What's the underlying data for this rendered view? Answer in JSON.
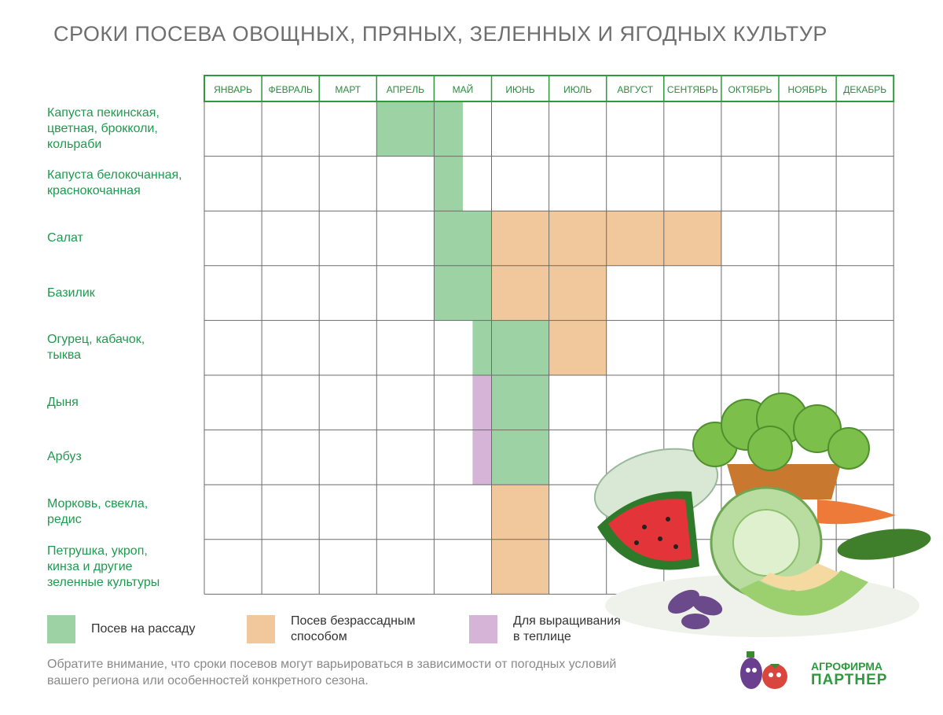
{
  "chart_data": {
    "type": "table",
    "title": "СРОКИ ПОСЕВА ОВОЩНЫХ, ПРЯНЫХ, ЗЕЛЕННЫХ И ЯГОДНЫХ КУЛЬТУР",
    "months": [
      "ЯНВАРЬ",
      "ФЕВРАЛЬ",
      "МАРТ",
      "АПРЕЛЬ",
      "МАЙ",
      "ИЮНЬ",
      "ИЮЛЬ",
      "АВГУСТ",
      "СЕНТЯБРЬ",
      "ОКТЯБРЬ",
      "НОЯБРЬ",
      "ДЕКАБРЬ"
    ],
    "crops": [
      {
        "name": "Капуста пекинская, цветная, брокколи, кольраби",
        "lines": [
          "Капуста пекинская,",
          "цветная, брокколи,",
          "кольраби"
        ],
        "periods": [
          {
            "type": "seedling",
            "start": 3.0,
            "end": 4.5
          }
        ]
      },
      {
        "name": "Капуста белокочанная, краснокочанная",
        "lines": [
          "Капуста белокочанная,",
          "краснокочанная"
        ],
        "periods": [
          {
            "type": "seedling",
            "start": 4.0,
            "end": 4.5
          }
        ]
      },
      {
        "name": "Салат",
        "lines": [
          "Салат"
        ],
        "periods": [
          {
            "type": "seedling",
            "start": 4.0,
            "end": 5.0
          },
          {
            "type": "direct",
            "start": 5.0,
            "end": 9.0
          }
        ]
      },
      {
        "name": "Базилик",
        "lines": [
          "Базилик"
        ],
        "periods": [
          {
            "type": "seedling",
            "start": 4.0,
            "end": 5.0
          },
          {
            "type": "direct",
            "start": 5.0,
            "end": 7.0
          }
        ]
      },
      {
        "name": "Огурец, кабачок, тыква",
        "lines": [
          "Огурец, кабачок,",
          "тыква"
        ],
        "periods": [
          {
            "type": "seedling",
            "start": 4.67,
            "end": 6.0
          },
          {
            "type": "direct",
            "start": 6.0,
            "end": 7.0
          }
        ]
      },
      {
        "name": "Дыня",
        "lines": [
          "Дыня"
        ],
        "periods": [
          {
            "type": "greenhouse",
            "start": 4.67,
            "end": 5.0
          },
          {
            "type": "seedling",
            "start": 5.0,
            "end": 6.0
          }
        ]
      },
      {
        "name": "Арбуз",
        "lines": [
          "Арбуз"
        ],
        "periods": [
          {
            "type": "greenhouse",
            "start": 4.67,
            "end": 5.0
          },
          {
            "type": "seedling",
            "start": 5.0,
            "end": 6.0
          }
        ]
      },
      {
        "name": "Морковь, свекла, редис",
        "lines": [
          "Морковь, свекла,",
          "редис"
        ],
        "periods": [
          {
            "type": "direct",
            "start": 5.0,
            "end": 6.0
          }
        ]
      },
      {
        "name": "Петрушка, укроп, кинза и другие зеленные культуры",
        "lines": [
          "Петрушка, укроп,",
          "кинза и другие",
          "зеленные культуры"
        ],
        "periods": [
          {
            "type": "direct",
            "start": 5.0,
            "end": 6.0
          }
        ]
      }
    ],
    "legend": [
      {
        "type": "seedling",
        "lines": [
          "Посев на рассаду"
        ],
        "color": "#9dd3a4"
      },
      {
        "type": "direct",
        "lines": [
          "Посев безрассадным",
          "способом"
        ],
        "color": "#f1c79c"
      },
      {
        "type": "greenhouse",
        "lines": [
          "Для выращивания",
          "в теплице"
        ],
        "color": "#d5b4d7"
      }
    ]
  },
  "note_lines": [
    "Обратите внимание, что сроки посевов могут варьироваться в зависимости от погодных условий",
    "вашего региона или особенностей конкретного сезона."
  ],
  "brand": {
    "line1": "АГРОФИРМА",
    "line2": "ПАРТНЕР"
  },
  "colors": {
    "grid": "#6c6c6c",
    "header_border": "#2e9a3e",
    "label": "#1f9a4f"
  }
}
